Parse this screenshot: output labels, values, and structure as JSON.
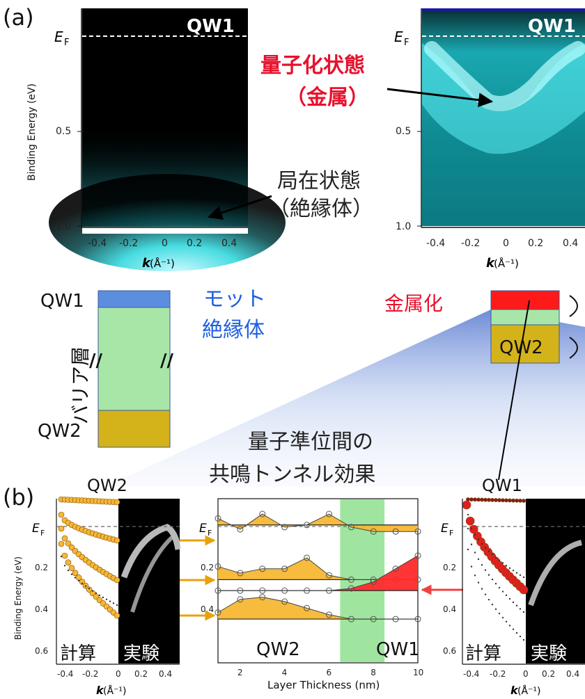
{
  "panel_a": {
    "tag": "(a)",
    "ef_label": "E",
    "ef_sub": "F",
    "ylabel": "Binding Energy (eV)",
    "xlabel_k": "k",
    "xlabel_unit": " (Å⁻¹)",
    "left_title": "QW1",
    "right_title": "QW1",
    "yticks": [
      "0.5",
      "1.0"
    ],
    "xticks": [
      "-0.4",
      "-0.2",
      "0",
      "0.2",
      "0.4"
    ],
    "left_ann_line1": "局在状態",
    "left_ann_line2": "（絶縁体）",
    "right_ann_line1": "量子化状態",
    "right_ann_line2": "（金属）"
  },
  "schematic": {
    "left_qw1": "QW1",
    "left_qw2": "QW2",
    "barrier": "バリア層",
    "mott_line1": "モット",
    "mott_line2": "絶縁体",
    "metallization": "金属化",
    "right_qw2": "QW2",
    "colors": {
      "qw1": "#5b8ede",
      "barrier": "#a8e6a8",
      "qw2": "#d4b21a",
      "metal": "#ff1a1a"
    }
  },
  "center_title": {
    "line1": "量子準位間の",
    "line2": "共鳴トンネル効果"
  },
  "panel_b": {
    "tag": "(b)",
    "left_title": "QW2",
    "right_title": "QW1",
    "ef_label": "E",
    "ef_sub": "F",
    "ylabel": "Binding Energy (eV)",
    "yticks": [
      "0.2",
      "0.4",
      "0.6"
    ],
    "xticks": [
      "-0.4",
      "-0.2",
      "0",
      "0.2",
      "0.4"
    ],
    "xlabel_k": "k",
    "xlabel_unit": " (Å⁻¹)",
    "calc_label": "計算",
    "exp_label": "実験",
    "middle_xlabel": "Layer Thickness (nm)",
    "middle_xticks": [
      "2",
      "4",
      "6",
      "8",
      "10"
    ],
    "middle_yticks": [
      "0.2",
      "0.4"
    ],
    "middle_qw2": "QW2",
    "middle_qw1": "QW1",
    "colors": {
      "qw2_fill": "#f7b733",
      "qw1_fill": "#ff2a2a",
      "highlight": "#8ee08e"
    }
  },
  "chart_data": {
    "type": "area",
    "xlabel": "Layer Thickness (nm)",
    "ylabel": "Binding Energy (eV)",
    "xlim": [
      1,
      10
    ],
    "ylim": [
      0.65,
      -0.1
    ],
    "highlight_band": [
      6.5,
      8.5
    ],
    "series": [
      {
        "x": [
          1,
          2,
          3,
          4,
          5,
          6,
          7,
          8,
          9,
          10
        ],
        "base": 0.02,
        "values": [
          -0.01,
          0.04,
          -0.03,
          0.03,
          0.02,
          -0.03,
          0.03,
          0.05,
          0.05,
          0.05
        ]
      },
      {
        "x": [
          1,
          2,
          3,
          4,
          5,
          6,
          7,
          8,
          9,
          10
        ],
        "base": 0.27,
        "values": [
          0.21,
          0.24,
          0.22,
          0.22,
          0.17,
          0.25,
          0.27,
          0.27,
          0.27,
          0.27
        ]
      },
      {
        "x": [
          1,
          2,
          3,
          4,
          5,
          6,
          7,
          8,
          9,
          10
        ],
        "base": 0.32,
        "values": [
          0.32,
          0.32,
          0.32,
          0.32,
          0.32,
          0.32,
          0.31,
          0.28,
          0.22,
          0.16
        ]
      },
      {
        "x": [
          1,
          2,
          3,
          4,
          5,
          6,
          7,
          8,
          9,
          10
        ],
        "base": 0.45,
        "values": [
          0.42,
          0.36,
          0.35,
          0.37,
          0.4,
          0.43,
          0.45,
          0.45,
          0.45,
          0.45
        ]
      }
    ]
  }
}
